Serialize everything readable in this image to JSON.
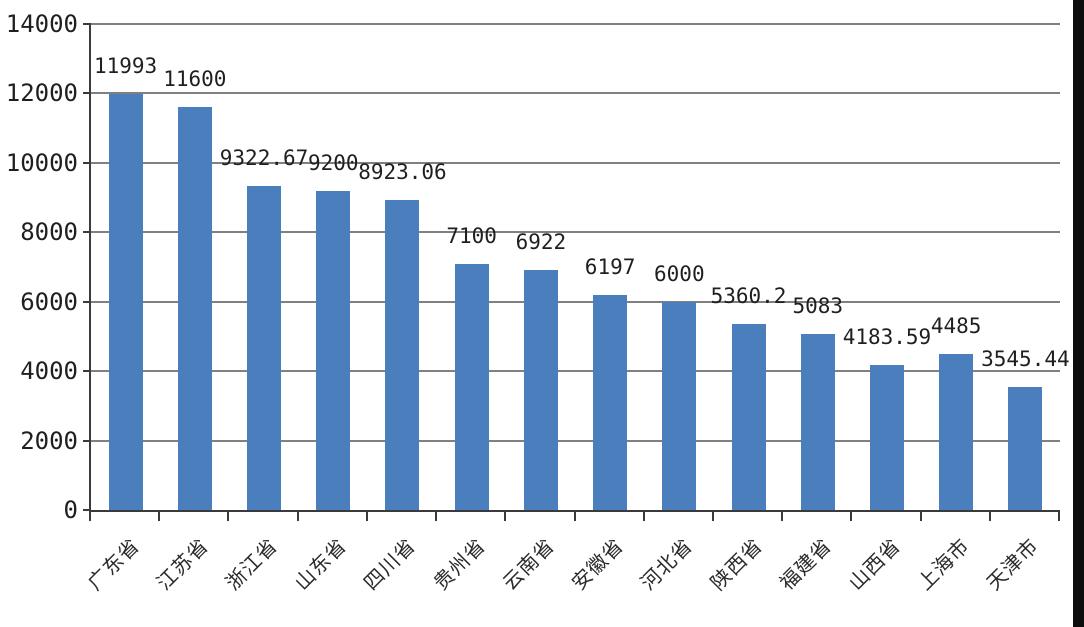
{
  "chart_data": {
    "type": "bar",
    "title": "",
    "xlabel": "",
    "ylabel": "",
    "categories": [
      "广东省",
      "江苏省",
      "浙江省",
      "山东省",
      "四川省",
      "贵州省",
      "云南省",
      "安徽省",
      "河北省",
      "陕西省",
      "福建省",
      "山西省",
      "上海市",
      "天津市"
    ],
    "values": [
      11993,
      11600,
      9322.67,
      9200,
      8923.06,
      7100,
      6922,
      6197,
      6000,
      5360.2,
      5083,
      4183.59,
      4485,
      3545.44
    ],
    "value_labels": [
      "11993",
      "11600",
      "9322.67",
      "9200",
      "8923.06",
      "7100",
      "6922",
      "6197",
      "6000",
      "5360.2",
      "5083",
      "4183.59",
      "4485",
      "3545.44"
    ],
    "ylim": [
      0,
      14000
    ],
    "ytick_interval": 2000,
    "ytick_labels": [
      "0",
      "2000",
      "4000",
      "6000",
      "8000",
      "10000",
      "12000",
      "14000"
    ],
    "grid": true,
    "legend": false,
    "bar_color": "#4b7ebd",
    "gridline_color": "#808080",
    "axis_color": "#3a3a3a",
    "text_color": "#1f1f1f",
    "background_color": "#ffffff"
  }
}
